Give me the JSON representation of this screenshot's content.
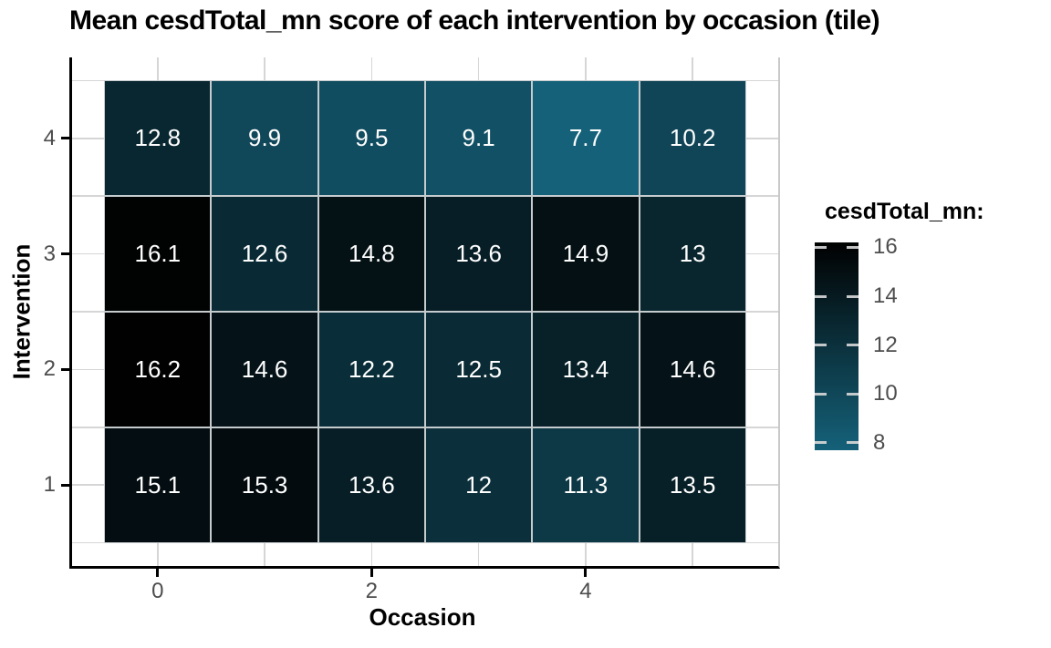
{
  "title": "Mean cesdTotal_mn score of each intervention by occasion (tile)",
  "chart_data": {
    "type": "heatmap",
    "title": "Mean cesdTotal_mn score of each intervention by occasion (tile)",
    "xlabel": "Occasion",
    "ylabel": "Intervention",
    "x_categories": [
      0,
      1,
      2,
      3,
      4,
      5
    ],
    "y_categories": [
      1,
      2,
      3,
      4
    ],
    "x_tick_labels": [
      "0",
      "2",
      "4"
    ],
    "x_tick_values": [
      0,
      2,
      4
    ],
    "y_tick_labels": [
      "1",
      "2",
      "3",
      "4"
    ],
    "y_tick_values": [
      1,
      2,
      3,
      4
    ],
    "xlim": [
      -0.8,
      5.8
    ],
    "ylim": [
      0.3,
      4.7
    ],
    "grid": true,
    "x_minor_gridlines": [
      1,
      3,
      5
    ],
    "y_minor_gridlines": [
      0.5,
      1.5,
      2.5,
      3.5,
      4.5
    ],
    "rows": [
      {
        "intervention": 4,
        "values": [
          12.8,
          9.9,
          9.5,
          9.1,
          7.7,
          10.2
        ]
      },
      {
        "intervention": 3,
        "values": [
          16.1,
          12.6,
          14.8,
          13.6,
          14.9,
          13
        ]
      },
      {
        "intervention": 2,
        "values": [
          16.2,
          14.6,
          12.2,
          12.5,
          13.4,
          14.6
        ]
      },
      {
        "intervention": 1,
        "values": [
          15.1,
          15.3,
          13.6,
          12,
          11.3,
          13.5
        ]
      }
    ],
    "legend": {
      "title": "cesdTotal_mn:",
      "position": "right",
      "tick_labels": [
        "16",
        "14",
        "12",
        "10",
        "8"
      ],
      "tick_values": [
        16,
        14,
        12,
        10,
        8
      ],
      "value_min": 7.7,
      "value_max": 16.2,
      "color_low": "#156179",
      "color_high": "#010101"
    },
    "colors": {
      "tile_text": "#ffffff",
      "axis_line": "#000000",
      "gridline": "#d6d6d6",
      "tick_label": "#4d4d4d",
      "tile_border": "#c6cbce"
    }
  }
}
